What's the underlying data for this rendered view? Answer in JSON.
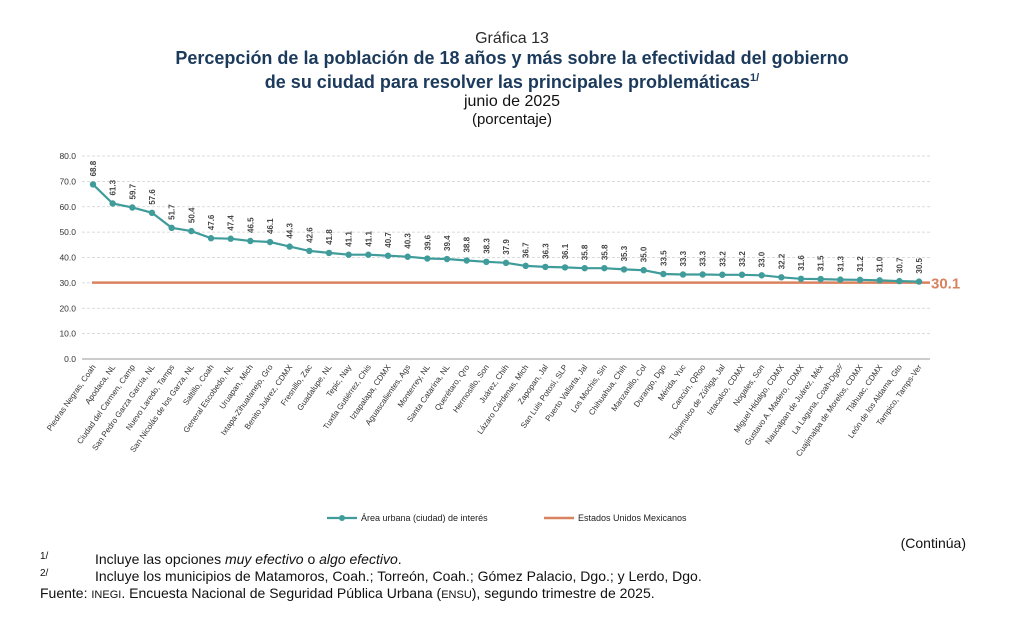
{
  "header": {
    "kicker": "Gráfica 13",
    "title_line1": "Percepción de la población de 18 años y más sobre la efectividad del gobierno",
    "title_line2": "de su ciudad para resolver las principales problemáticas",
    "title_sup": "1/",
    "subtitle": "junio de 2025",
    "unit": "(porcentaje)"
  },
  "chart_data": {
    "type": "line",
    "title": "Percepción de la población de 18 años y más sobre la efectividad del gobierno de su ciudad para resolver las principales problemáticas",
    "ylim": [
      0,
      80
    ],
    "y_ticks": [
      "0.0",
      "10.0",
      "20.0",
      "30.0",
      "40.0",
      "50.0",
      "60.0",
      "70.0",
      "80.0"
    ],
    "categories": [
      "Piedras Negras, Coah",
      "Apodaca, NL",
      "Ciudad del Carmen, Camp",
      "San Pedro Garza García, NL",
      "Nuevo Laredo, Tamps",
      "San Nicolás de los Garza, NL",
      "Saltillo, Coah",
      "General Escobedo, NL",
      "Uruapan, Mich",
      "Ixtapa-Zihuatanejo, Gro",
      "Benito Juárez, CDMX",
      "Fresnillo, Zac",
      "Guadalupe, NL",
      "Tepic, Nay",
      "Tuxtla Gutiérrez, Chis",
      "Iztapalapa, CDMX",
      "Aguascalientes, Ags",
      "Monterrey, NL",
      "Santa Catarina, NL",
      "Querétaro, Qro",
      "Hermosillo, Son",
      "Juárez, Chih",
      "Lázaro Cárdenas, Mich",
      "Zapopan, Jal",
      "San Luis Potosí, SLP",
      "Puerto Vallarta, Jal",
      "Los Mochis, Sin",
      "Chihuahua, Chih",
      "Manzanillo, Col",
      "Durango, Dgo",
      "Mérida, Yuc",
      "Cancún, QRoo",
      "Tlajomulco de Zúñiga, Jal",
      "Iztacalco, CDMX",
      "Nogales, Son",
      "Miguel Hidalgo, CDMX",
      "Gustavo A. Madero, CDMX",
      "Naucalpan de Juárez, Méx",
      "La Laguna, Coah-Dgo²⁄",
      "Cuajimalpa de Morelos, CDMX",
      "Tláhuac, CDMX",
      "León de los Aldama, Gto",
      "Tampico, Tamps-Ver"
    ],
    "series": [
      {
        "name": "Área urbana (ciudad) de interés",
        "color": "#3f9c9a",
        "values": [
          68.8,
          61.3,
          59.7,
          57.6,
          51.7,
          50.4,
          47.6,
          47.4,
          46.5,
          46.1,
          44.3,
          42.6,
          41.8,
          41.1,
          41.1,
          40.7,
          40.3,
          39.6,
          39.4,
          38.8,
          38.3,
          37.9,
          36.7,
          36.3,
          36.1,
          35.8,
          35.8,
          35.3,
          35.0,
          33.5,
          33.3,
          33.3,
          33.2,
          33.2,
          33.0,
          32.2,
          31.6,
          31.5,
          31.3,
          31.2,
          31.0,
          30.7,
          30.5
        ],
        "labels": [
          "68.8",
          "61.3",
          "59.7",
          "57.6",
          "51.7",
          "50.4",
          "47.6",
          "47.4",
          "46.5",
          "46.1",
          "44.3",
          "42.6",
          "41.8",
          "41.1",
          "41.1",
          "40.7",
          "40.3",
          "39.6",
          "39.4",
          "38.8",
          "38.3",
          "37.9",
          "36.7",
          "36.3",
          "36.1",
          "35.8",
          "35.8",
          "35.3",
          "35.0",
          "33.5",
          "33.3",
          "33.3",
          "33.2",
          "33.2",
          "33.0",
          "32.2",
          "31.6",
          "31.5",
          "31.3",
          "31.2",
          "31.0",
          "30.7",
          "30.5"
        ]
      },
      {
        "name": "Estados Unidos Mexicanos",
        "color": "#d9825f",
        "value": 30.1,
        "label": "30.1"
      }
    ],
    "legend_position": "bottom",
    "grid": true
  },
  "continua": "(Continúa)",
  "footnotes": [
    {
      "mark": "1/",
      "pre": "Incluye las opciones ",
      "em1": "muy efectivo",
      "mid": " o ",
      "em2": "algo efectivo",
      "post": "."
    },
    {
      "mark": "2/",
      "text": "Incluye los municipios de Matamoros, Coah.; Torreón, Coah.; Gómez Palacio, Dgo.; y Lerdo, Dgo."
    }
  ],
  "source": {
    "label": "Fuente: ",
    "org": "INEGI",
    "mid": ". Encuesta Nacional de Seguridad Pública Urbana (",
    "abbr": "ENSU",
    "end": "), segundo trimestre de 2025."
  }
}
